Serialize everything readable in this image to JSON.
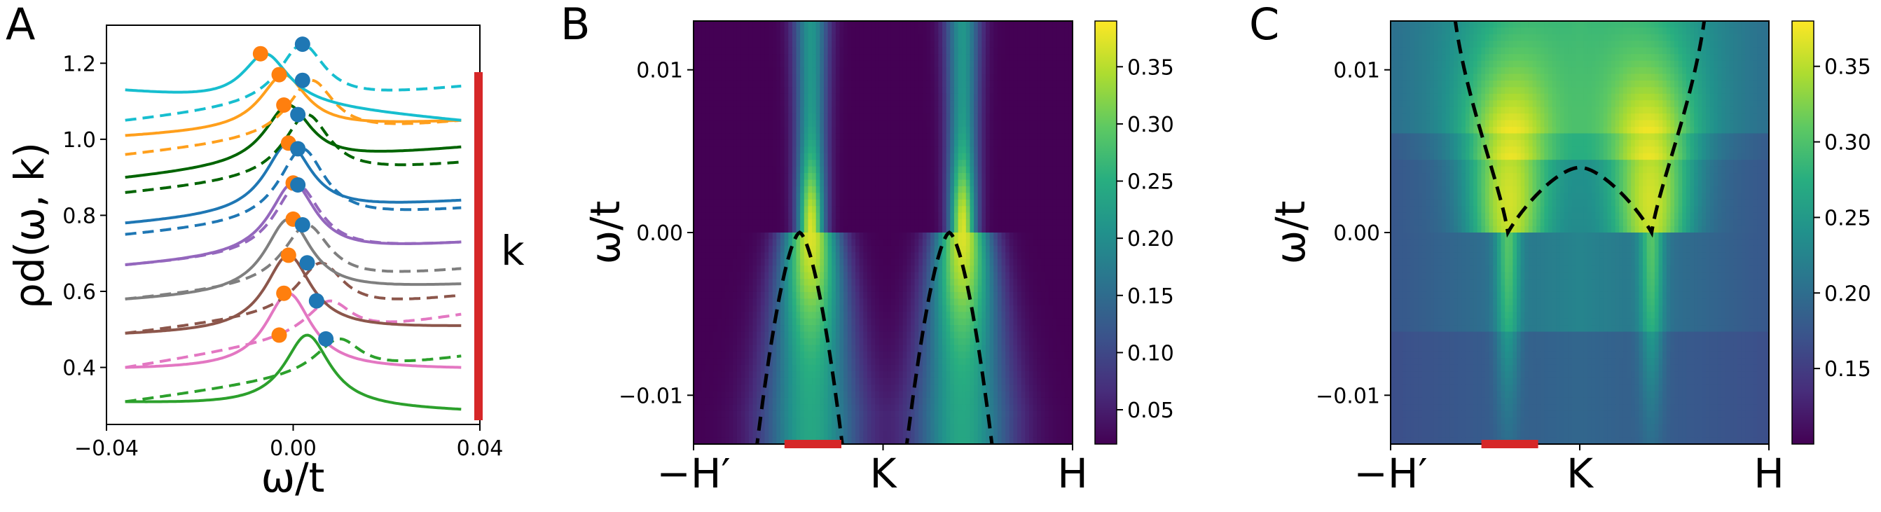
{
  "chart_data": [
    {
      "panel": "A",
      "type": "line",
      "xlabel": "ω/t",
      "ylabel": "ρd(ω, k)",
      "xlim": [
        -0.04,
        0.04
      ],
      "ylim": [
        0.25,
        1.3
      ],
      "xticks": [
        -0.04,
        0.0,
        0.04
      ],
      "xtick_labels": [
        "−0.04",
        "0.00",
        "0.04"
      ],
      "yticks": [
        0.4,
        0.6,
        0.8,
        1.0,
        1.2
      ],
      "ytick_labels": [
        "0.4",
        "0.6",
        "0.8",
        "1.0",
        "1.2"
      ],
      "k_label": "k",
      "k_bar_color": "#d62728",
      "gamma": 0.006,
      "x_range": [
        -0.036,
        0.036
      ],
      "series": [
        {
          "color": "#2ca02c",
          "solid": {
            "base": 0.31,
            "end": 0.29,
            "peak": 0.485,
            "x0": 0.003
          },
          "dashed": {
            "base": 0.31,
            "end": 0.43,
            "peak": 0.475,
            "x0": 0.01
          },
          "orange_dot": [
            -0.003,
            0.485
          ],
          "blue_dot": [
            0.007,
            0.475
          ]
        },
        {
          "color": "#e377c2",
          "solid": {
            "base": 0.4,
            "end": 0.4,
            "peak": 0.595,
            "x0": -0.001
          },
          "dashed": {
            "base": 0.4,
            "end": 0.54,
            "peak": 0.575,
            "x0": 0.008
          },
          "orange_dot": [
            -0.002,
            0.595
          ],
          "blue_dot": [
            0.005,
            0.575
          ]
        },
        {
          "color": "#8c564b",
          "solid": {
            "base": 0.49,
            "end": 0.51,
            "peak": 0.695,
            "x0": -0.001
          },
          "dashed": {
            "base": 0.49,
            "end": 0.59,
            "peak": 0.675,
            "x0": 0.006
          },
          "orange_dot": [
            -0.001,
            0.695
          ],
          "blue_dot": [
            0.003,
            0.675
          ]
        },
        {
          "color": "#7f7f7f",
          "solid": {
            "base": 0.58,
            "end": 0.62,
            "peak": 0.79,
            "x0": -0.001
          },
          "dashed": {
            "base": 0.58,
            "end": 0.66,
            "peak": 0.775,
            "x0": 0.003
          },
          "orange_dot": [
            0.0,
            0.79
          ],
          "blue_dot": [
            0.002,
            0.775
          ]
        },
        {
          "color": "#9467bd",
          "solid": {
            "base": 0.67,
            "end": 0.73,
            "peak": 0.885,
            "x0": 0.0
          },
          "dashed": {
            "base": 0.67,
            "end": 0.73,
            "peak": 0.88,
            "x0": 0.001
          },
          "orange_dot": [
            0.0,
            0.885
          ],
          "blue_dot": [
            0.001,
            0.88
          ]
        },
        {
          "color": "#1f77b4",
          "solid": {
            "base": 0.78,
            "end": 0.84,
            "peak": 0.99,
            "x0": -0.001
          },
          "dashed": {
            "base": 0.75,
            "end": 0.82,
            "peak": 0.975,
            "x0": 0.002
          },
          "orange_dot": [
            -0.001,
            0.99
          ],
          "blue_dot": [
            0.001,
            0.975
          ]
        },
        {
          "color": "#006400",
          "solid": {
            "base": 0.9,
            "end": 0.98,
            "peak": 1.09,
            "x0": -0.001
          },
          "dashed": {
            "base": 0.86,
            "end": 0.94,
            "peak": 1.065,
            "x0": 0.003
          },
          "orange_dot": [
            -0.002,
            1.09
          ],
          "blue_dot": [
            0.001,
            1.065
          ]
        },
        {
          "color": "#ff9f1c",
          "solid": {
            "base": 1.01,
            "end": 1.05,
            "peak": 1.17,
            "x0": -0.002
          },
          "dashed": {
            "base": 0.96,
            "end": 1.05,
            "peak": 1.155,
            "x0": 0.004
          },
          "orange_dot": [
            -0.003,
            1.17
          ],
          "blue_dot": [
            0.002,
            1.155
          ]
        },
        {
          "color": "#17becf",
          "solid": {
            "base": 1.13,
            "end": 1.05,
            "peak": 1.225,
            "x0": -0.006
          },
          "dashed": {
            "base": 1.05,
            "end": 1.14,
            "peak": 1.25,
            "x0": 0.002
          },
          "orange_dot": [
            -0.007,
            1.225
          ],
          "blue_dot": [
            0.002,
            1.25
          ]
        }
      ]
    },
    {
      "panel": "B",
      "type": "heatmap",
      "ylabel": "ω/t",
      "ylim": [
        -0.013,
        0.013
      ],
      "yticks": [
        -0.01,
        0.0,
        0.01
      ],
      "ytick_labels": [
        "−0.01",
        "0.00",
        "0.01"
      ],
      "xtick_labels": [
        "−H′",
        "K",
        "H"
      ],
      "colorbar_ticks": [
        0.05,
        0.1,
        0.15,
        0.2,
        0.25,
        0.3,
        0.35
      ],
      "colorbar_tick_labels": [
        "0.05",
        "0.10",
        "0.15",
        "0.20",
        "0.25",
        "0.30",
        "0.35"
      ],
      "colorbar_range": [
        0.02,
        0.39
      ],
      "band_centers": [
        0.31,
        0.71
      ],
      "dashed_curve_peak": 0.0,
      "red_segment": [
        0.24,
        0.39
      ]
    },
    {
      "panel": "C",
      "type": "heatmap",
      "ylabel": "ω/t",
      "ylim": [
        -0.013,
        0.013
      ],
      "yticks": [
        -0.01,
        0.0,
        0.01
      ],
      "ytick_labels": [
        "−0.01",
        "0.00",
        "0.01"
      ],
      "xtick_labels": [
        "−H′",
        "K",
        "H"
      ],
      "colorbar_ticks": [
        0.15,
        0.2,
        0.25,
        0.3,
        0.35
      ],
      "colorbar_tick_labels": [
        "0.15",
        "0.20",
        "0.25",
        "0.30",
        "0.35"
      ],
      "colorbar_range": [
        0.1,
        0.38
      ],
      "band_centers": [
        0.31,
        0.69
      ],
      "dashed_curve_peak": 0.004,
      "red_segment": [
        0.24,
        0.39
      ]
    }
  ],
  "panel_letters": [
    "A",
    "B",
    "C"
  ],
  "colors": {
    "dashed_curve": "#000000",
    "orange_marker": "#ff7f0e",
    "blue_marker": "#1f77b4",
    "red_bar": "#d62728"
  }
}
